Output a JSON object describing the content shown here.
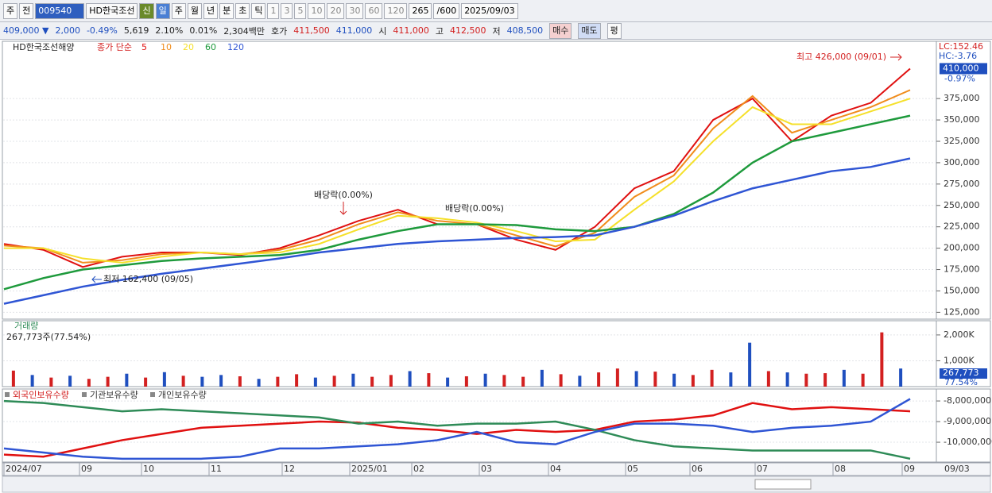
{
  "toolbar": [
    "주",
    "전",
    "009540",
    "HD한국조선",
    "신",
    "일",
    "주",
    "월",
    "년",
    "분",
    "초",
    "틱",
    "1",
    "3",
    "5",
    "10",
    "20",
    "30",
    "60",
    "120",
    "265",
    "/600",
    "2025/09/03"
  ],
  "infobar": [
    "409,000 ▼",
    "2,000",
    "-0.49%",
    "5,619",
    "2.10%",
    "0.01%",
    "2,304백만",
    "호가",
    "411,500",
    "411,000",
    "시",
    "411,000",
    "고",
    "412,500",
    "저",
    "408,500",
    "매수",
    "매도",
    "평"
  ],
  "x_labels": [
    "2024/07",
    "09",
    "10",
    "11",
    "12",
    "2025/01",
    "02",
    "03",
    "04",
    "05",
    "06",
    "07",
    "08",
    "09"
  ],
  "last_date": "09/03",
  "chart_data": [
    {
      "type": "line",
      "legend_title": "HD한국조선해양",
      "legend_label": "종가 단순",
      "series": [
        {
          "name": "5",
          "color": "#e01010",
          "values": [
            205000,
            198000,
            178000,
            190000,
            195000,
            195000,
            192000,
            200000,
            215000,
            232000,
            245000,
            228000,
            228000,
            210000,
            198000,
            225000,
            270000,
            290000,
            350000,
            375000,
            325000,
            355000,
            370000,
            410000
          ]
        },
        {
          "name": "10",
          "color": "#f08c1c",
          "values": [
            203000,
            200000,
            183000,
            186000,
            193000,
            195000,
            193000,
            198000,
            210000,
            228000,
            242000,
            232000,
            228000,
            215000,
            202000,
            218000,
            260000,
            285000,
            340000,
            378000,
            335000,
            350000,
            365000,
            385000
          ]
        },
        {
          "name": "20",
          "color": "#f5e02a",
          "values": [
            200000,
            200000,
            188000,
            183000,
            190000,
            195000,
            193000,
            195000,
            205000,
            222000,
            238000,
            235000,
            230000,
            220000,
            208000,
            210000,
            245000,
            278000,
            325000,
            365000,
            345000,
            345000,
            360000,
            375000
          ]
        },
        {
          "name": "60",
          "color": "#1e9a3c",
          "values": [
            152000,
            165000,
            175000,
            180000,
            185000,
            188000,
            190000,
            192000,
            198000,
            210000,
            220000,
            228000,
            228000,
            227000,
            222000,
            220000,
            225000,
            240000,
            265000,
            300000,
            325000,
            335000,
            345000,
            355000
          ]
        },
        {
          "name": "120",
          "color": "#2f55d4",
          "values": [
            135000,
            145000,
            155000,
            163000,
            170000,
            176000,
            182000,
            188000,
            195000,
            200000,
            205000,
            208000,
            210000,
            212000,
            213000,
            215000,
            225000,
            238000,
            255000,
            270000,
            280000,
            290000,
            295000,
            305000
          ]
        }
      ],
      "ylim": [
        117000,
        442000
      ],
      "yticks": [
        {
          "value": 125000,
          "label": "125,000"
        },
        {
          "value": 150000,
          "label": "150,000"
        },
        {
          "value": 175000,
          "label": "175,000"
        },
        {
          "value": 200000,
          "label": "200,000"
        },
        {
          "value": 225000,
          "label": "225,000"
        },
        {
          "value": 250000,
          "label": "250,000"
        },
        {
          "value": 275000,
          "label": "275,000"
        },
        {
          "value": 300000,
          "label": "300,000"
        },
        {
          "value": 325000,
          "label": "325,000"
        },
        {
          "value": 350000,
          "label": "350,000"
        },
        {
          "value": 375000,
          "label": "375,000"
        }
      ],
      "right_labels": [
        "LC:152.46",
        "HC:-3.76"
      ],
      "last_price": {
        "value": 410000,
        "label": "410,000"
      },
      "last_change": "-0.97%",
      "annotations": [
        "최고 426,000 (09/01)",
        "최저 162,400 (09/05)",
        "배당락(0.00%)",
        "배당락(0.00%)"
      ]
    },
    {
      "type": "bar",
      "title": "거래량",
      "subtitle": "267,773주(77.54%)",
      "values": [
        620,
        450,
        350,
        420,
        300,
        380,
        500,
        350,
        560,
        420,
        380,
        450,
        400,
        300,
        380,
        480,
        350,
        420,
        500,
        380,
        450,
        600,
        520,
        350,
        400,
        500,
        450,
        380,
        650,
        480,
        420,
        550,
        700,
        600,
        580,
        500,
        450,
        650,
        550,
        1700,
        600,
        550,
        500,
        520,
        650,
        500,
        2100,
        700
      ],
      "up": [
        true,
        false,
        true,
        false,
        true,
        true,
        false,
        true,
        false,
        true,
        false,
        false,
        true,
        false,
        true,
        true,
        false,
        true,
        false,
        true,
        true,
        false,
        true,
        false,
        true,
        false,
        true,
        true,
        false,
        true,
        false,
        true,
        true,
        false,
        true,
        false,
        true,
        true,
        false,
        false,
        true,
        false,
        true,
        true,
        false,
        true,
        true,
        false
      ],
      "up_color": "#d32020",
      "down_color": "#1f4fbf",
      "ylim": [
        0,
        2550
      ],
      "yticks": [
        {
          "value": 1000,
          "label": "1,000K"
        },
        {
          "value": 2000,
          "label": "2,000K"
        }
      ],
      "last_label": "267,773",
      "last_pct": "77.54%"
    },
    {
      "type": "line",
      "series": [
        {
          "name": "외국인보유수량",
          "color": "#e01010",
          "values": [
            -10600000,
            -10700000,
            -10300000,
            -9900000,
            -9600000,
            -9300000,
            -9200000,
            -9100000,
            -9000000,
            -9050000,
            -9300000,
            -9400000,
            -9600000,
            -9400000,
            -9500000,
            -9400000,
            -9000000,
            -8900000,
            -8700000,
            -8100000,
            -8400000,
            -8300000,
            -8400000,
            -8500000
          ]
        },
        {
          "name": "기관보유수량",
          "color": "#2e8b57",
          "values": [
            -8000000,
            -8100000,
            -8300000,
            -8500000,
            -8400000,
            -8500000,
            -8600000,
            -8700000,
            -8800000,
            -9100000,
            -9000000,
            -9200000,
            -9100000,
            -9100000,
            -9000000,
            -9400000,
            -9900000,
            -10200000,
            -10300000,
            -10400000,
            -10400000,
            -10400000,
            -10400000,
            -10800000
          ]
        },
        {
          "name": "개인보유수량",
          "color": "#2f55d4",
          "values": [
            -10300000,
            -10500000,
            -10700000,
            -10800000,
            -10800000,
            -10800000,
            -10700000,
            -10300000,
            -10300000,
            -10200000,
            -10100000,
            -9900000,
            -9500000,
            -10000000,
            -10100000,
            -9500000,
            -9100000,
            -9100000,
            -9200000,
            -9500000,
            -9300000,
            -9200000,
            -9000000,
            -7900000
          ]
        }
      ],
      "ylim": [
        -10960000,
        -7420000
      ],
      "yticks": [
        {
          "value": -8000000,
          "label": "-8,000,000"
        },
        {
          "value": -9000000,
          "label": "-9,000,000"
        },
        {
          "value": -10000000,
          "label": "-10,000,000"
        }
      ]
    }
  ]
}
